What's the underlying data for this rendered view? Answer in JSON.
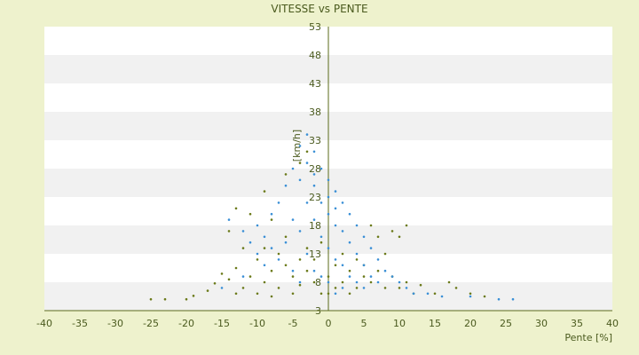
{
  "chart_data": {
    "type": "scatter",
    "title": "VITESSE vs PENTE",
    "xlabel": "Pente [%]",
    "ylabel": "[km/h]",
    "xlim": [
      -40,
      40
    ],
    "ylim": [
      3,
      53
    ],
    "x_ticks": [
      -40,
      -35,
      -30,
      -25,
      -20,
      -15,
      -10,
      -5,
      0,
      5,
      10,
      15,
      20,
      25,
      30,
      35,
      40
    ],
    "y_ticks": [
      3,
      8,
      13,
      18,
      23,
      28,
      33,
      38,
      43,
      48,
      53
    ],
    "y_tick_labels": [
      "3",
      "8",
      "13",
      "18",
      "23",
      "28",
      "33",
      "38",
      "43",
      "48",
      "53"
    ],
    "grid": "horizontal alternating bands",
    "series": [
      {
        "color": "#6b7a1a",
        "points": [
          [
            -25,
            5
          ],
          [
            -23,
            5
          ],
          [
            -20,
            5
          ],
          [
            -19,
            5.6
          ],
          [
            -17,
            6.5
          ],
          [
            -16,
            7.8
          ],
          [
            -15,
            9.5
          ],
          [
            -14,
            8.5
          ],
          [
            -13,
            6
          ],
          [
            -13,
            10.5
          ],
          [
            -12,
            7
          ],
          [
            -11,
            9
          ],
          [
            -10,
            12
          ],
          [
            -10,
            6
          ],
          [
            -9,
            14
          ],
          [
            -9,
            8
          ],
          [
            -8,
            10
          ],
          [
            -8,
            5.5
          ],
          [
            -7,
            13
          ],
          [
            -7,
            7
          ],
          [
            -6,
            11
          ],
          [
            -6,
            16
          ],
          [
            -5,
            9
          ],
          [
            -5,
            6
          ],
          [
            -4,
            12
          ],
          [
            -4,
            7.5
          ],
          [
            -3,
            10
          ],
          [
            -3,
            14
          ],
          [
            -2,
            8
          ],
          [
            -2,
            12
          ],
          [
            -1,
            6
          ],
          [
            -1,
            15
          ],
          [
            0,
            9
          ],
          [
            0,
            6
          ],
          [
            1,
            11
          ],
          [
            1,
            7
          ],
          [
            2,
            13
          ],
          [
            2,
            8
          ],
          [
            3,
            10
          ],
          [
            3,
            6
          ],
          [
            4,
            12
          ],
          [
            4,
            7
          ],
          [
            5,
            9
          ],
          [
            5,
            11
          ],
          [
            6,
            8
          ],
          [
            7,
            10
          ],
          [
            8,
            7
          ],
          [
            9,
            9
          ],
          [
            10,
            7
          ],
          [
            11,
            8
          ],
          [
            12,
            6
          ],
          [
            13,
            7.5
          ],
          [
            15,
            6
          ],
          [
            17,
            8
          ],
          [
            18,
            7
          ],
          [
            20,
            6
          ],
          [
            22,
            5.5
          ],
          [
            -14,
            17
          ],
          [
            -12,
            14
          ],
          [
            -11,
            20
          ],
          [
            -13,
            21
          ],
          [
            -8,
            19
          ],
          [
            -9,
            24
          ],
          [
            -6,
            27
          ],
          [
            -4,
            29
          ],
          [
            -3,
            31
          ],
          [
            6,
            18
          ],
          [
            7,
            16
          ],
          [
            9,
            17
          ],
          [
            11,
            18
          ],
          [
            10,
            16
          ],
          [
            8,
            13
          ]
        ]
      },
      {
        "color": "#3a8fd6",
        "points": [
          [
            -14,
            19
          ],
          [
            -12,
            17
          ],
          [
            -11,
            15
          ],
          [
            -10,
            13
          ],
          [
            -10,
            18
          ],
          [
            -9,
            16
          ],
          [
            -9,
            11
          ],
          [
            -8,
            14
          ],
          [
            -8,
            20
          ],
          [
            -7,
            22
          ],
          [
            -7,
            12
          ],
          [
            -6,
            25
          ],
          [
            -6,
            15
          ],
          [
            -5,
            28
          ],
          [
            -5,
            19
          ],
          [
            -5,
            10
          ],
          [
            -4,
            32
          ],
          [
            -4,
            26
          ],
          [
            -4,
            17
          ],
          [
            -4,
            8
          ],
          [
            -3,
            34
          ],
          [
            -3,
            29
          ],
          [
            -3,
            22
          ],
          [
            -3,
            13
          ],
          [
            -2,
            31
          ],
          [
            -2,
            25
          ],
          [
            -2,
            19
          ],
          [
            -2,
            10
          ],
          [
            -1,
            28
          ],
          [
            -1,
            22
          ],
          [
            -1,
            16
          ],
          [
            -1,
            9
          ],
          [
            0,
            26
          ],
          [
            0,
            20
          ],
          [
            0,
            14
          ],
          [
            0,
            8
          ],
          [
            1,
            24
          ],
          [
            1,
            18
          ],
          [
            1,
            12
          ],
          [
            1,
            6
          ],
          [
            2,
            22
          ],
          [
            2,
            17
          ],
          [
            2,
            11
          ],
          [
            2,
            7
          ],
          [
            3,
            20
          ],
          [
            3,
            15
          ],
          [
            3,
            9
          ],
          [
            4,
            18
          ],
          [
            4,
            13
          ],
          [
            4,
            8
          ],
          [
            5,
            16
          ],
          [
            5,
            11
          ],
          [
            5,
            7
          ],
          [
            6,
            14
          ],
          [
            6,
            9
          ],
          [
            7,
            12
          ],
          [
            7,
            8
          ],
          [
            8,
            10
          ],
          [
            9,
            9
          ],
          [
            10,
            8
          ],
          [
            11,
            7
          ],
          [
            12,
            6
          ],
          [
            14,
            6
          ],
          [
            16,
            5.5
          ],
          [
            20,
            5.5
          ],
          [
            24,
            5
          ],
          [
            26,
            5
          ],
          [
            -15,
            7
          ],
          [
            -12,
            9
          ],
          [
            -2,
            27
          ],
          [
            0,
            23
          ],
          [
            1,
            21
          ]
        ]
      }
    ]
  }
}
